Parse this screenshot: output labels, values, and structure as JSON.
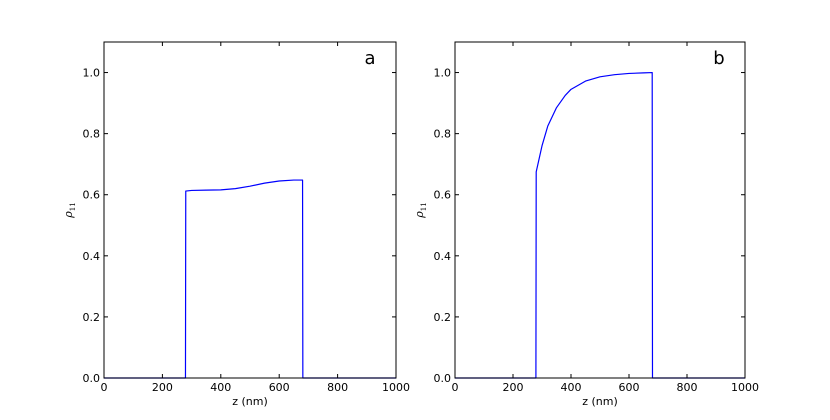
{
  "chart_data": [
    {
      "type": "line",
      "panel_label": "a",
      "xlabel": "z (nm)",
      "ylabel": "ρ",
      "ylabel_subscript": "11",
      "xlim": [
        0,
        1000
      ],
      "ylim": [
        0,
        1.1
      ],
      "x_ticks": [
        0,
        200,
        400,
        600,
        800,
        1000
      ],
      "y_ticks": [
        0.0,
        0.2,
        0.4,
        0.6,
        0.8,
        1.0
      ],
      "x_tick_labels": [
        "0",
        "200",
        "400",
        "600",
        "800",
        "1000"
      ],
      "y_tick_labels": [
        "0.0",
        "0.2",
        "0.4",
        "0.6",
        "0.8",
        "1.0"
      ],
      "grid": false,
      "line_color": "#0000ff",
      "x": [
        0,
        279,
        280,
        300,
        350,
        400,
        450,
        500,
        550,
        600,
        650,
        680,
        681,
        1000
      ],
      "y": [
        0,
        0,
        0.612,
        0.614,
        0.615,
        0.616,
        0.62,
        0.628,
        0.638,
        0.645,
        0.648,
        0.648,
        0,
        0
      ]
    },
    {
      "type": "line",
      "panel_label": "b",
      "xlabel": "z (nm)",
      "ylabel": "ρ",
      "ylabel_subscript": "11",
      "xlim": [
        0,
        1000
      ],
      "ylim": [
        0,
        1.1
      ],
      "x_ticks": [
        0,
        200,
        400,
        600,
        800,
        1000
      ],
      "y_ticks": [
        0.0,
        0.2,
        0.4,
        0.6,
        0.8,
        1.0
      ],
      "x_tick_labels": [
        "0",
        "200",
        "400",
        "600",
        "800",
        "1000"
      ],
      "y_tick_labels": [
        "0.0",
        "0.2",
        "0.4",
        "0.6",
        "0.8",
        "1.0"
      ],
      "grid": false,
      "line_color": "#0000ff",
      "x": [
        0,
        279,
        280,
        300,
        320,
        350,
        380,
        400,
        450,
        500,
        550,
        600,
        650,
        680,
        681,
        1000
      ],
      "y": [
        0,
        0,
        0.675,
        0.76,
        0.825,
        0.885,
        0.925,
        0.945,
        0.972,
        0.986,
        0.993,
        0.997,
        0.999,
        1.0,
        0,
        0
      ]
    }
  ]
}
